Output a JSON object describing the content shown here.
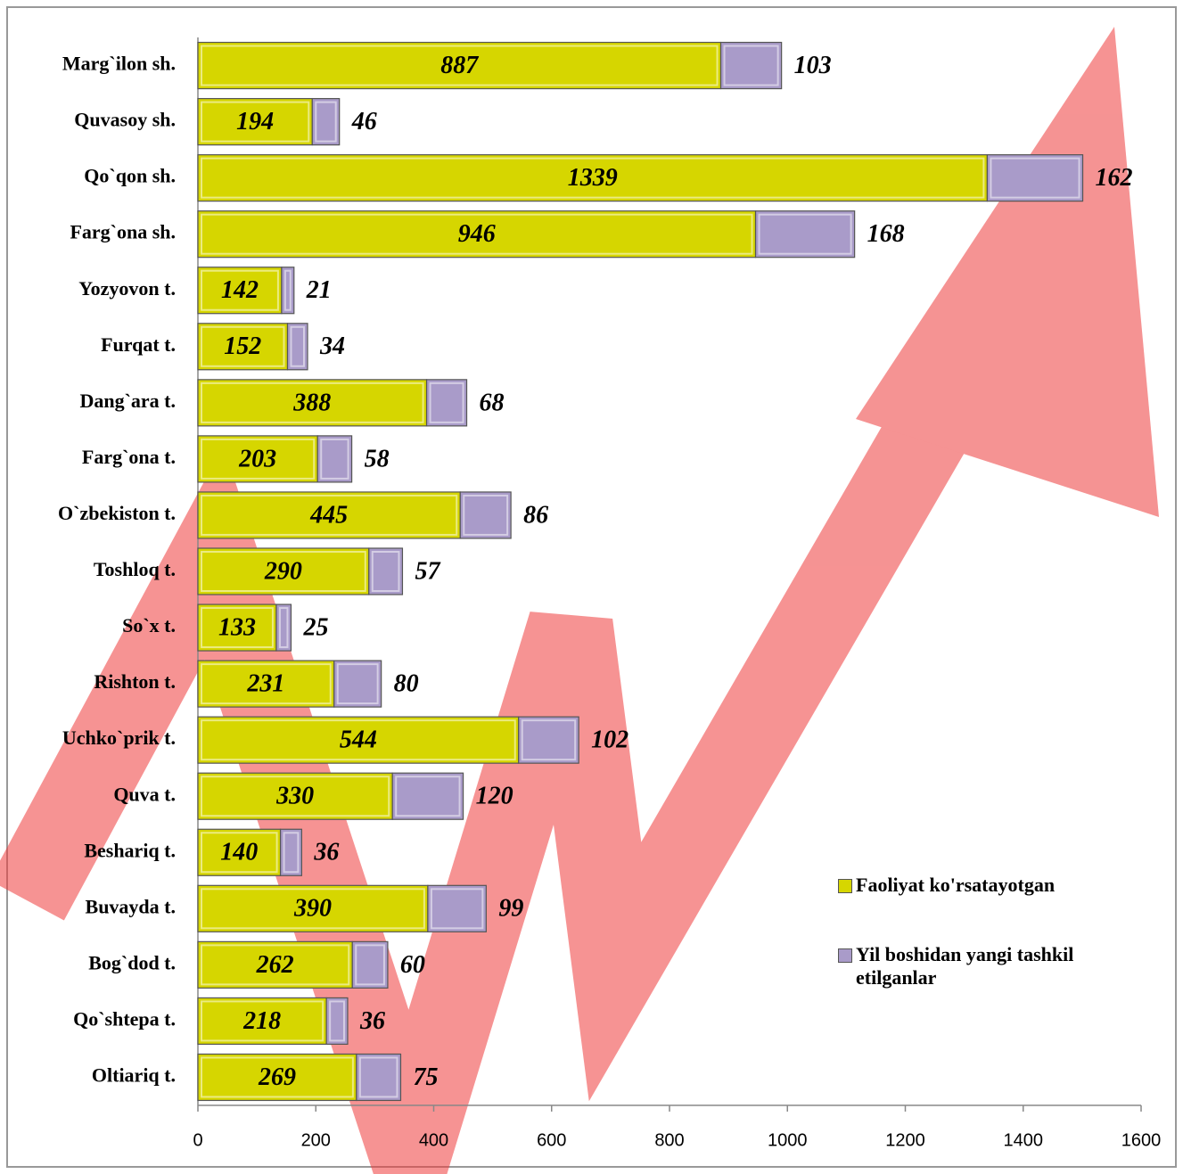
{
  "chart_data": {
    "type": "stacked-barh",
    "categories": [
      "Marg`ilon sh.",
      "Quvasoy sh.",
      "Qo`qon sh.",
      "Farg`ona sh.",
      "Yozyovon t.",
      "Furqat t.",
      "Dang`ara t.",
      "Farg`ona t.",
      "O`zbekiston t.",
      "Toshloq t.",
      "So`x t.",
      "Rishton t.",
      "Uchko`prik t.",
      "Quva t.",
      "Beshariq t.",
      "Buvayda t.",
      "Bog`dod t.",
      "Qo`shtepa t.",
      "Oltiariq t."
    ],
    "series": [
      {
        "name": "Faoliyat ko'rsatayotgan",
        "color": "#d6d600",
        "values": [
          887,
          194,
          1339,
          946,
          142,
          152,
          388,
          203,
          445,
          290,
          133,
          231,
          544,
          330,
          140,
          390,
          262,
          218,
          269
        ]
      },
      {
        "name": "Yil boshidan yangi tashkil etilganlar",
        "color": "#a99bc9",
        "values": [
          103,
          46,
          162,
          168,
          21,
          34,
          68,
          58,
          86,
          57,
          25,
          80,
          102,
          120,
          36,
          99,
          60,
          36,
          75
        ]
      }
    ],
    "xlim": [
      0,
      1600
    ],
    "xticks": [
      0,
      200,
      400,
      600,
      800,
      1000,
      1200,
      1400,
      1600
    ]
  }
}
